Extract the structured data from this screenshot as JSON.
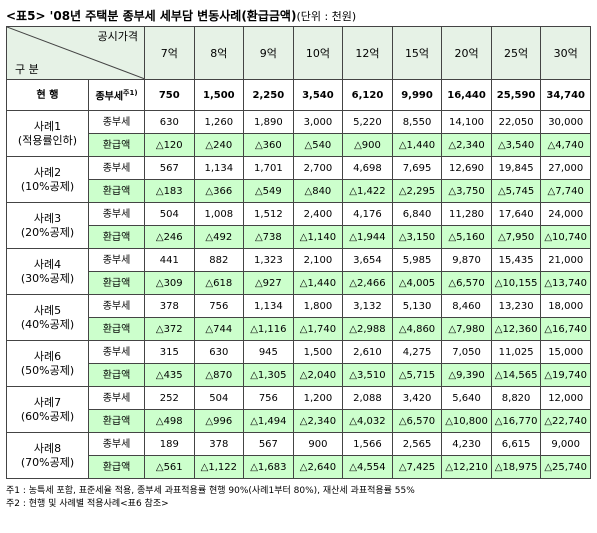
{
  "title": "<표5> '08년 주택분 종부세 세부담 변동사례(환급금액)",
  "unit": "(단위 : 천원)",
  "header": {
    "corner_top": "공시가격",
    "corner_bottom": "구 분",
    "columns": [
      "7억",
      "8억",
      "9억",
      "10억",
      "12억",
      "15억",
      "20억",
      "25억",
      "30억"
    ]
  },
  "current": {
    "label": "현 행",
    "row_label": "종부세",
    "note_mark": "주1)",
    "values": [
      "750",
      "1,500",
      "2,250",
      "3,540",
      "6,120",
      "9,990",
      "16,440",
      "25,590",
      "34,740"
    ]
  },
  "row_labels": {
    "tax": "종부세",
    "refund": "환급액"
  },
  "cases": [
    {
      "name": "사례1",
      "desc": "(적용률인하)",
      "tax": [
        "630",
        "1,260",
        "1,890",
        "3,000",
        "5,220",
        "8,550",
        "14,100",
        "22,050",
        "30,000"
      ],
      "refund": [
        "△120",
        "△240",
        "△360",
        "△540",
        "△900",
        "△1,440",
        "△2,340",
        "△3,540",
        "△4,740"
      ]
    },
    {
      "name": "사례2",
      "desc": "(10%공제)",
      "tax": [
        "567",
        "1,134",
        "1,701",
        "2,700",
        "4,698",
        "7,695",
        "12,690",
        "19,845",
        "27,000"
      ],
      "refund": [
        "△183",
        "△366",
        "△549",
        "△840",
        "△1,422",
        "△2,295",
        "△3,750",
        "△5,745",
        "△7,740"
      ]
    },
    {
      "name": "사례3",
      "desc": "(20%공제)",
      "tax": [
        "504",
        "1,008",
        "1,512",
        "2,400",
        "4,176",
        "6,840",
        "11,280",
        "17,640",
        "24,000"
      ],
      "refund": [
        "△246",
        "△492",
        "△738",
        "△1,140",
        "△1,944",
        "△3,150",
        "△5,160",
        "△7,950",
        "△10,740"
      ]
    },
    {
      "name": "사례4",
      "desc": "(30%공제)",
      "tax": [
        "441",
        "882",
        "1,323",
        "2,100",
        "3,654",
        "5,985",
        "9,870",
        "15,435",
        "21,000"
      ],
      "refund": [
        "△309",
        "△618",
        "△927",
        "△1,440",
        "△2,466",
        "△4,005",
        "△6,570",
        "△10,155",
        "△13,740"
      ]
    },
    {
      "name": "사례5",
      "desc": "(40%공제)",
      "tax": [
        "378",
        "756",
        "1,134",
        "1,800",
        "3,132",
        "5,130",
        "8,460",
        "13,230",
        "18,000"
      ],
      "refund": [
        "△372",
        "△744",
        "△1,116",
        "△1,740",
        "△2,988",
        "△4,860",
        "△7,980",
        "△12,360",
        "△16,740"
      ]
    },
    {
      "name": "사례6",
      "desc": "(50%공제)",
      "tax": [
        "315",
        "630",
        "945",
        "1,500",
        "2,610",
        "4,275",
        "7,050",
        "11,025",
        "15,000"
      ],
      "refund": [
        "△435",
        "△870",
        "△1,305",
        "△2,040",
        "△3,510",
        "△5,715",
        "△9,390",
        "△14,565",
        "△19,740"
      ]
    },
    {
      "name": "사례7",
      "desc": "(60%공제)",
      "tax": [
        "252",
        "504",
        "756",
        "1,200",
        "2,088",
        "3,420",
        "5,640",
        "8,820",
        "12,000"
      ],
      "refund": [
        "△498",
        "△996",
        "△1,494",
        "△2,340",
        "△4,032",
        "△6,570",
        "△10,800",
        "△16,770",
        "△22,740"
      ]
    },
    {
      "name": "사례8",
      "desc": "(70%공제)",
      "tax": [
        "189",
        "378",
        "567",
        "900",
        "1,566",
        "2,565",
        "4,230",
        "6,615",
        "9,000"
      ],
      "refund": [
        "△561",
        "△1,122",
        "△1,683",
        "△2,640",
        "△4,554",
        "△7,425",
        "△12,210",
        "△18,975",
        "△25,740"
      ]
    }
  ],
  "notes": [
    "주1 : 농특세 포함, 표준세율 적용, 종부세 과표적용률 현행 90%(사례1부터 80%), 재산세 과표적용률 55%",
    "주2 : 현행 및 사례별 적용사례<표6 참조>"
  ]
}
